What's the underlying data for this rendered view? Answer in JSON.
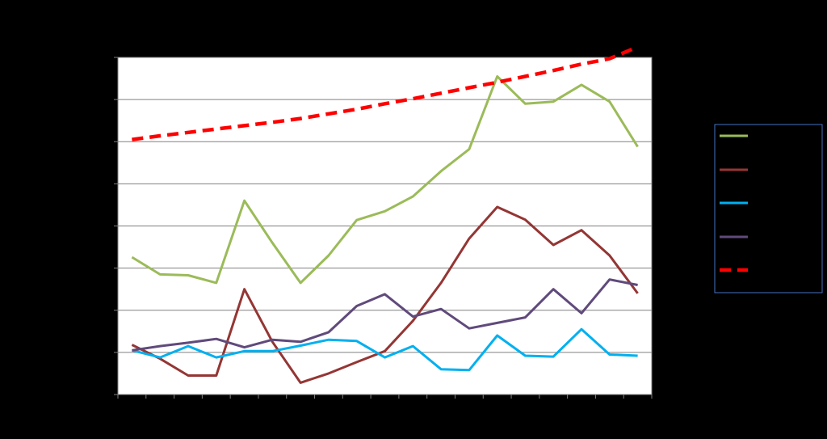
{
  "chart_data": {
    "type": "line",
    "title": "",
    "xlabel": "",
    "ylabel": "",
    "x": [
      1,
      2,
      3,
      4,
      5,
      6,
      7,
      8,
      9,
      10,
      11,
      12,
      13,
      14,
      15,
      16,
      17,
      18,
      19
    ],
    "ylim": [
      0,
      8
    ],
    "y_gridlines": [
      1,
      2,
      3,
      4,
      5,
      6,
      7,
      8
    ],
    "grid": true,
    "legend": {
      "position": "right",
      "labels_visible": false
    },
    "series": [
      {
        "color": "#9BBB59",
        "style": "solid",
        "values": [
          3.26,
          2.85,
          2.83,
          2.65,
          4.6,
          3.6,
          2.65,
          3.3,
          4.14,
          4.35,
          4.7,
          5.3,
          5.82,
          7.55,
          6.9,
          6.95,
          7.35,
          6.95,
          5.88
        ]
      },
      {
        "color": "#943634",
        "style": "solid",
        "values": [
          1.18,
          0.85,
          0.45,
          0.45,
          2.5,
          1.25,
          0.28,
          0.5,
          0.77,
          1.03,
          1.75,
          2.65,
          3.7,
          4.45,
          4.15,
          3.55,
          3.9,
          3.3,
          2.4
        ]
      },
      {
        "color": "#00B0F0",
        "style": "solid",
        "values": [
          1.05,
          0.88,
          1.15,
          0.88,
          1.03,
          1.03,
          1.16,
          1.3,
          1.27,
          0.88,
          1.15,
          0.6,
          0.58,
          1.4,
          0.92,
          0.9,
          1.55,
          0.95,
          0.92
        ]
      },
      {
        "color": "#604A7B",
        "style": "solid",
        "values": [
          1.05,
          1.15,
          1.23,
          1.32,
          1.12,
          1.3,
          1.25,
          1.48,
          2.1,
          2.38,
          1.85,
          2.03,
          1.57,
          1.7,
          1.83,
          2.5,
          1.93,
          2.73,
          2.6
        ]
      },
      {
        "color": "#FF0000",
        "style": "dashed",
        "values": [
          6.05,
          6.14,
          6.22,
          6.3,
          6.38,
          6.46,
          6.55,
          6.66,
          6.77,
          6.9,
          7.02,
          7.15,
          7.28,
          7.41,
          7.55,
          7.69,
          7.84,
          7.97,
          8.25
        ]
      }
    ]
  }
}
